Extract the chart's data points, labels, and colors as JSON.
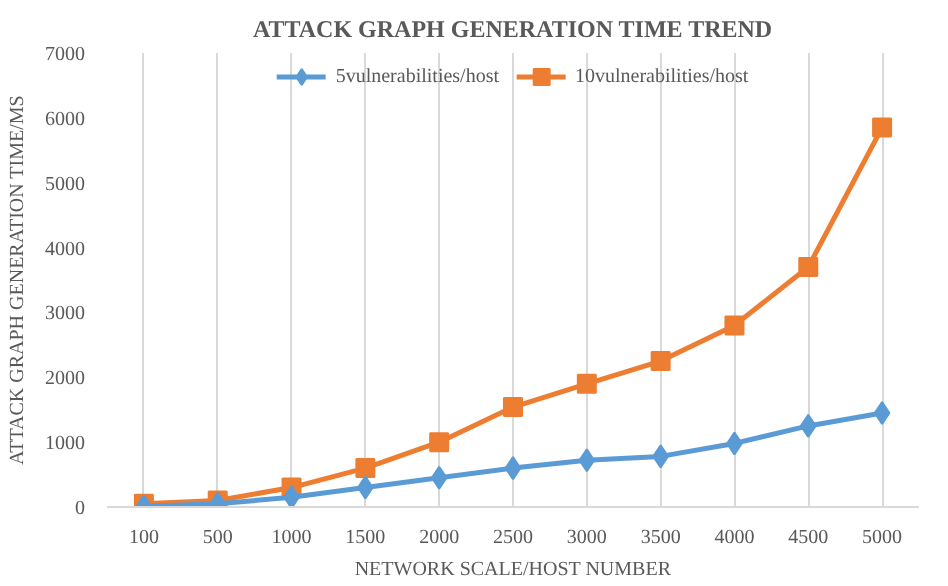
{
  "chart_data": {
    "type": "line",
    "title": "ATTACK GRAPH GENERATION TIME TREND",
    "xlabel": "NETWORK SCALE/HOST NUMBER",
    "ylabel": "ATTACK GRAPH GENERATION TIME/MS",
    "categories": [
      "100",
      "500",
      "1000",
      "1500",
      "2000",
      "2500",
      "3000",
      "3500",
      "4000",
      "4500",
      "5000"
    ],
    "series": [
      {
        "name": "5vulnerabilities/host",
        "color": "#5b9bd5",
        "marker": "diamond",
        "values": [
          10,
          50,
          150,
          300,
          450,
          600,
          720,
          780,
          980,
          1250,
          1450
        ]
      },
      {
        "name": "10vulnerabilities/host",
        "color": "#ed7d31",
        "marker": "square",
        "values": [
          50,
          100,
          300,
          600,
          1000,
          1540,
          1900,
          2250,
          2800,
          3700,
          5850
        ]
      }
    ],
    "ylim": [
      0,
      7000
    ],
    "yticks": [
      0,
      1000,
      2000,
      3000,
      4000,
      5000,
      6000,
      7000
    ],
    "grid": "x",
    "legend": "top"
  }
}
